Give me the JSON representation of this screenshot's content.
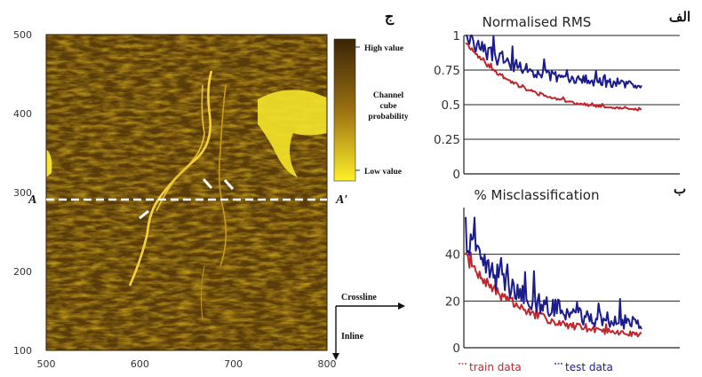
{
  "chart_data": [
    {
      "type": "heatmap",
      "panel_label": "ج",
      "x": [
        500,
        600,
        700,
        800
      ],
      "y": [
        100,
        200,
        300,
        400,
        500
      ],
      "xlim": [
        500,
        800
      ],
      "ylim": [
        100,
        500
      ],
      "colorbar": {
        "high": "High value",
        "title": "Channel cube probability",
        "low": "Low value"
      },
      "section_line": {
        "y": 291,
        "start_label": "A",
        "end_label": "A′"
      },
      "axis_arrows": {
        "crossline": "Crossline",
        "inline": "Inline"
      },
      "colors": {
        "dark": "#3a2405",
        "mid": "#8a6410",
        "bright": "#f7e320",
        "accent": "#ffffff"
      }
    },
    {
      "type": "line",
      "panel_label": "الف",
      "title": "Normalised RMS",
      "ylim": [
        0,
        1
      ],
      "yticks": [
        "0",
        "0.25",
        "0.5",
        "0.75",
        "1"
      ],
      "ytick_values": [
        0,
        0.25,
        0.5,
        0.75,
        1
      ],
      "series": [
        {
          "color": "#c0262e",
          "start": 0.95,
          "end": 0.44,
          "noise": 0.012,
          "seed": 11
        },
        {
          "color": "#1c1c8c",
          "start": 0.98,
          "end": 0.62,
          "noise": 0.045,
          "seed": 29
        }
      ]
    },
    {
      "type": "line",
      "panel_label": "ب",
      "title": "% Misclassification",
      "ylim": [
        0,
        60
      ],
      "yticks": [
        "0",
        "20",
        "40"
      ],
      "ytick_values": [
        0,
        20,
        40
      ],
      "series": [
        {
          "name": "train data",
          "color": "#c0262e",
          "start": 38,
          "end": 4,
          "noise": 1.8,
          "seed": 7
        },
        {
          "name": "test data",
          "color": "#1c1c8c",
          "start": 44,
          "end": 8,
          "noise": 5.0,
          "seed": 41
        }
      ],
      "legend": [
        {
          "label": "train data",
          "color": "#c0262e"
        },
        {
          "label": "test data",
          "color": "#1c1c8c"
        }
      ]
    }
  ]
}
